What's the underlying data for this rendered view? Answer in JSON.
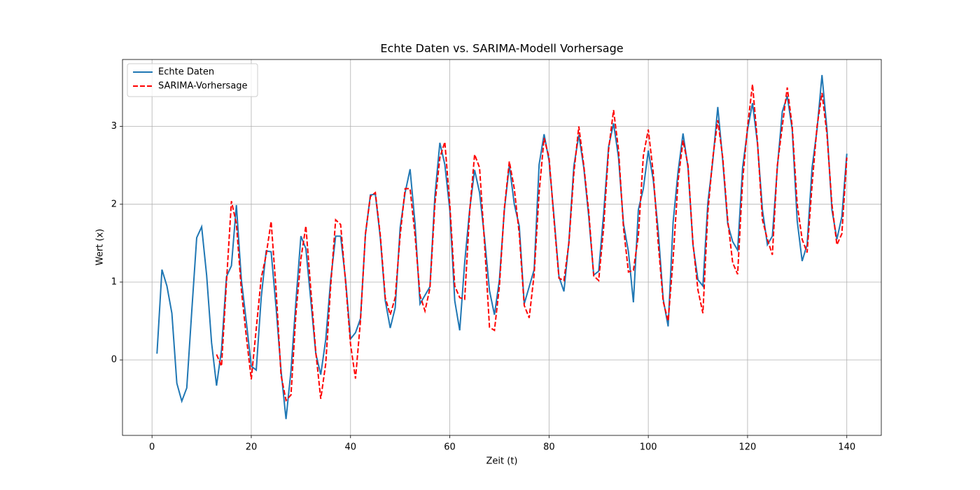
{
  "chart_data": {
    "type": "line",
    "title": "Echte Daten vs. SARIMA-Modell Vorhersage",
    "x_label": "Zeit (t)",
    "y_label": "Wert (x)",
    "x": [
      1,
      2,
      3,
      4,
      5,
      6,
      7,
      8,
      9,
      10,
      11,
      12,
      13,
      14,
      15,
      16,
      17,
      18,
      19,
      20,
      21,
      22,
      23,
      24,
      25,
      26,
      27,
      28,
      29,
      30,
      31,
      32,
      33,
      34,
      35,
      36,
      37,
      38,
      39,
      40,
      41,
      42,
      43,
      44,
      45,
      46,
      47,
      48,
      49,
      50,
      51,
      52,
      53,
      54,
      55,
      56,
      57,
      58,
      59,
      60,
      61,
      62,
      63,
      64,
      65,
      66,
      67,
      68,
      69,
      70,
      71,
      72,
      73,
      74,
      75,
      76,
      77,
      78,
      79,
      80,
      81,
      82,
      83,
      84,
      85,
      86,
      87,
      88,
      89,
      90,
      91,
      92,
      93,
      94,
      95,
      96,
      97,
      98,
      99,
      100,
      101,
      102,
      103,
      104,
      105,
      106,
      107,
      108,
      109,
      110,
      111,
      112,
      113,
      114,
      115,
      116,
      117,
      118,
      119,
      120,
      121,
      122,
      123,
      124,
      125,
      126,
      127,
      128,
      129,
      130,
      131,
      132,
      133,
      134,
      135,
      136,
      137,
      138,
      139,
      140
    ],
    "series": [
      {
        "name": "Echte Daten",
        "color": "#1f77b4",
        "dashed": false,
        "values": [
          0.08,
          1.16,
          0.95,
          0.6,
          -0.3,
          -0.53,
          -0.36,
          0.62,
          1.57,
          1.71,
          1.09,
          0.22,
          -0.33,
          0.13,
          1.07,
          1.21,
          1.99,
          1.03,
          0.49,
          -0.08,
          -0.13,
          0.8,
          1.4,
          1.39,
          0.67,
          -0.14,
          -0.76,
          -0.14,
          0.76,
          1.59,
          1.43,
          0.76,
          0.08,
          -0.19,
          0.26,
          1.03,
          1.59,
          1.59,
          1.03,
          0.27,
          0.35,
          0.53,
          1.61,
          2.12,
          2.13,
          1.57,
          0.76,
          0.41,
          0.67,
          1.7,
          2.15,
          2.45,
          1.75,
          0.72,
          0.83,
          0.94,
          2.11,
          2.79,
          2.51,
          1.93,
          0.76,
          0.38,
          1.25,
          1.93,
          2.44,
          2.15,
          1.57,
          0.89,
          0.58,
          1.03,
          1.93,
          2.5,
          2.0,
          1.72,
          0.72,
          0.94,
          1.16,
          2.51,
          2.9,
          2.56,
          1.84,
          1.07,
          0.88,
          1.52,
          2.49,
          2.89,
          2.47,
          1.84,
          1.09,
          1.14,
          1.88,
          2.74,
          3.04,
          2.6,
          1.75,
          1.39,
          0.74,
          1.93,
          2.2,
          2.69,
          2.31,
          1.66,
          0.78,
          0.43,
          1.77,
          2.42,
          2.91,
          2.47,
          1.48,
          1.03,
          0.95,
          2.02,
          2.56,
          3.25,
          2.56,
          1.75,
          1.52,
          1.41,
          2.47,
          2.96,
          3.3,
          2.78,
          1.93,
          1.48,
          1.59,
          2.47,
          3.19,
          3.39,
          2.96,
          1.79,
          1.27,
          1.48,
          2.47,
          2.96,
          3.66,
          2.96,
          1.93,
          1.55,
          1.84,
          2.65
        ]
      },
      {
        "name": "SARIMA-Vorhersage",
        "color": "#ff0000",
        "dashed": true,
        "values": [
          null,
          null,
          null,
          null,
          null,
          null,
          null,
          null,
          null,
          null,
          null,
          null,
          0.07,
          -0.08,
          1.0,
          2.04,
          1.75,
          0.9,
          0.3,
          -0.25,
          0.4,
          1.05,
          1.35,
          1.78,
          0.9,
          -0.2,
          -0.52,
          -0.45,
          0.6,
          1.3,
          1.72,
          0.9,
          0.1,
          -0.5,
          -0.05,
          0.95,
          1.8,
          1.74,
          1.0,
          0.2,
          -0.24,
          0.5,
          1.62,
          2.1,
          2.15,
          1.6,
          0.8,
          0.58,
          0.8,
          1.6,
          2.2,
          2.2,
          1.6,
          0.83,
          0.63,
          0.92,
          2.0,
          2.6,
          2.8,
          2.0,
          0.95,
          0.8,
          0.78,
          1.9,
          2.64,
          2.47,
          1.5,
          0.42,
          0.38,
          0.95,
          1.95,
          2.55,
          2.2,
          1.62,
          0.7,
          0.54,
          1.1,
          2.15,
          2.85,
          2.6,
          1.8,
          1.05,
          1.02,
          1.5,
          2.4,
          3.0,
          2.5,
          1.9,
          1.08,
          1.02,
          1.7,
          2.7,
          3.21,
          2.7,
          1.7,
          1.13,
          1.15,
          1.6,
          2.62,
          2.96,
          2.4,
          1.5,
          0.75,
          0.5,
          1.3,
          2.3,
          2.82,
          2.5,
          1.5,
          0.9,
          0.6,
          1.9,
          2.6,
          3.08,
          2.6,
          1.8,
          1.25,
          1.1,
          2.3,
          3.0,
          3.54,
          2.8,
          1.8,
          1.55,
          1.35,
          2.5,
          3.0,
          3.5,
          3.0,
          2.0,
          1.55,
          1.38,
          2.25,
          3.0,
          3.43,
          2.9,
          2.0,
          1.48,
          1.62,
          2.6
        ]
      }
    ],
    "xlim": [
      -5.95,
      146.95
    ],
    "ylim": [
      -0.97,
      3.86
    ],
    "xticks": [
      0,
      20,
      40,
      60,
      80,
      100,
      120,
      140
    ],
    "yticks": [
      0,
      1,
      2,
      3
    ],
    "grid": true,
    "legend": "upper left"
  }
}
